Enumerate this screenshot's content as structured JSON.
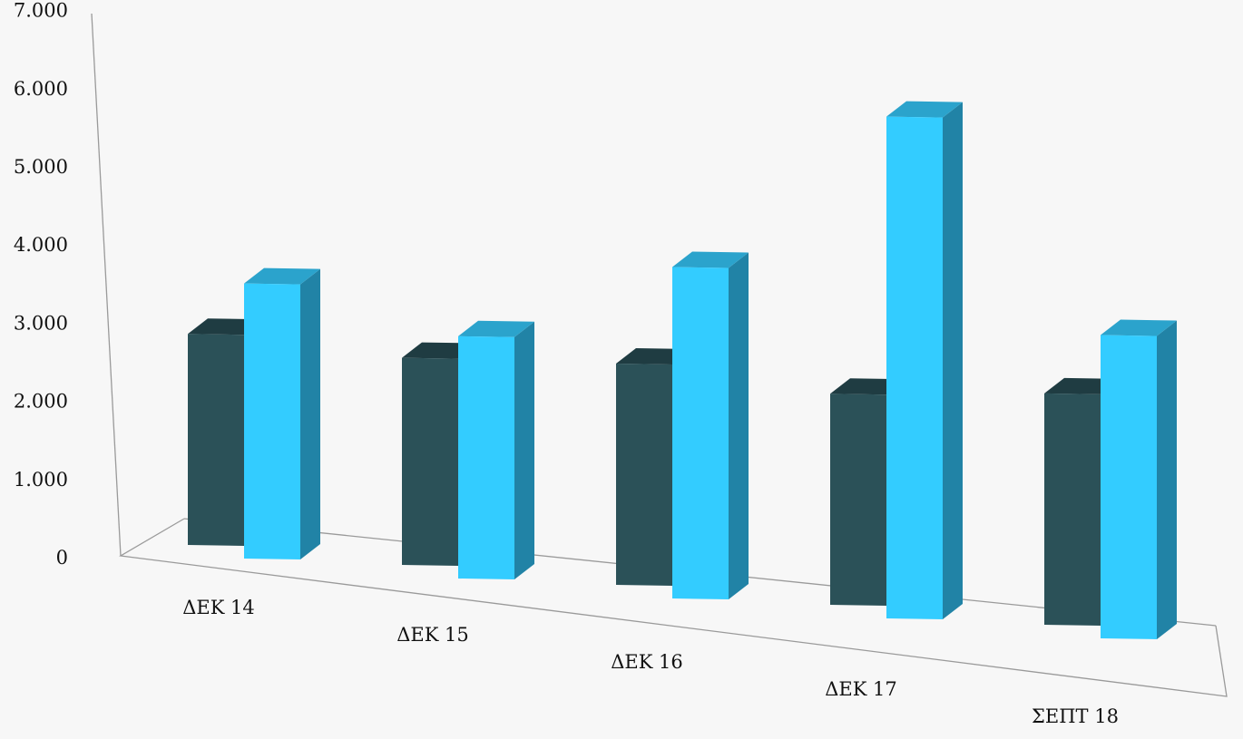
{
  "colors": {
    "background": "#f7f7f7",
    "axis_line": "#9a9a9a",
    "series_1_front": "#2b5158",
    "series_1_top": "#1f3c42",
    "series_1_side": "#1c363b",
    "series_2_front": "#33ccff",
    "series_2_top": "#2ba3cc",
    "series_2_side": "#2183a6"
  },
  "chart_data": {
    "type": "bar",
    "projection": "3d",
    "categories": [
      "ΔΕΚ 14",
      "ΔΕΚ 15",
      "ΔΕΚ 16",
      "ΔΕΚ 17",
      "ΣΕΠΤ 18"
    ],
    "series": [
      {
        "values": [
          2700,
          2650,
          2830,
          2700,
          2960
        ]
      },
      {
        "values": [
          3520,
          3100,
          4240,
          6420,
          3880
        ]
      }
    ],
    "ylim": [
      0,
      7000
    ],
    "yticks": [
      0,
      1000,
      2000,
      3000,
      4000,
      5000,
      6000,
      7000
    ],
    "ytick_labels": [
      "0",
      "1.000",
      "2.000",
      "3.000",
      "4.000",
      "5.000",
      "6.000",
      "7.000"
    ],
    "title": "",
    "xlabel": "",
    "ylabel": "",
    "grid": false,
    "legend": "none"
  }
}
